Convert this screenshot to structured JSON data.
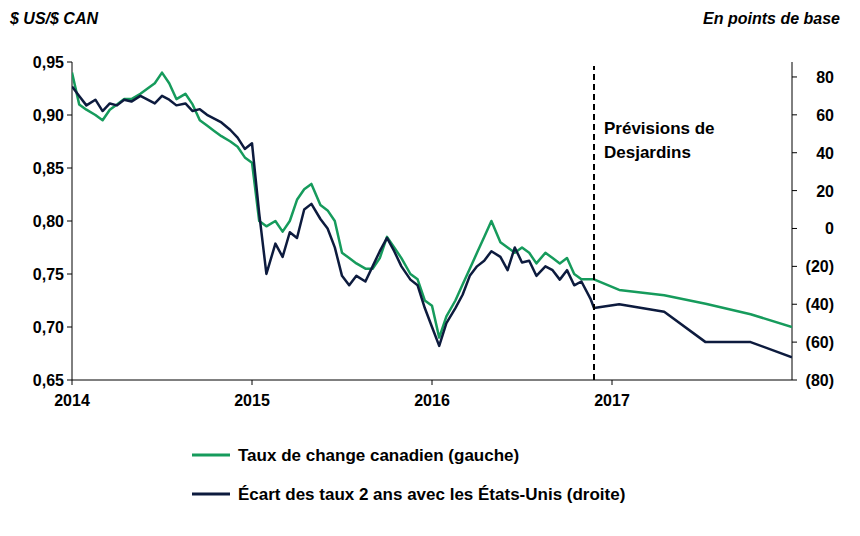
{
  "chart_data": {
    "type": "line",
    "y_label": "$ US/$ CAN",
    "y2_label": "En points de base",
    "x": [
      2014.0,
      2014.04,
      2014.08,
      2014.13,
      2014.17,
      2014.21,
      2014.25,
      2014.29,
      2014.33,
      2014.38,
      2014.42,
      2014.46,
      2014.5,
      2014.54,
      2014.58,
      2014.63,
      2014.67,
      2014.71,
      2014.75,
      2014.79,
      2014.83,
      2014.88,
      2014.92,
      2014.96,
      2015.0,
      2015.04,
      2015.08,
      2015.13,
      2015.17,
      2015.21,
      2015.25,
      2015.29,
      2015.33,
      2015.38,
      2015.42,
      2015.46,
      2015.5,
      2015.54,
      2015.58,
      2015.63,
      2015.67,
      2015.71,
      2015.75,
      2015.79,
      2015.83,
      2015.88,
      2015.92,
      2015.96,
      2016.0,
      2016.04,
      2016.08,
      2016.13,
      2016.17,
      2016.21,
      2016.25,
      2016.29,
      2016.33,
      2016.38,
      2016.42,
      2016.46,
      2016.5,
      2016.54,
      2016.58,
      2016.63,
      2016.67,
      2016.71,
      2016.75,
      2016.79,
      2016.83,
      2016.88,
      2016.9,
      2017.04,
      2017.29,
      2017.52,
      2017.77,
      2018.0
    ],
    "xlim": [
      2014,
      2018
    ],
    "xticks": [
      2014,
      2015,
      2016,
      2017
    ],
    "ylim": [
      0.65,
      0.95
    ],
    "yticks": [
      {
        "value": 0.65,
        "label": "0,65"
      },
      {
        "value": 0.7,
        "label": "0,70"
      },
      {
        "value": 0.75,
        "label": "0,75"
      },
      {
        "value": 0.8,
        "label": "0,80"
      },
      {
        "value": 0.85,
        "label": "0,85"
      },
      {
        "value": 0.9,
        "label": "0,90"
      },
      {
        "value": 0.95,
        "label": "0,95"
      }
    ],
    "y2lim": [
      -80,
      87.9
    ],
    "y2ticks": [
      {
        "value": -80,
        "label": "(80)"
      },
      {
        "value": -60,
        "label": "(60)"
      },
      {
        "value": -40,
        "label": "(40)"
      },
      {
        "value": -20,
        "label": "(20)"
      },
      0,
      20,
      40,
      60,
      80
    ],
    "grid": false,
    "legend": "bottom",
    "series": [
      {
        "name": "Taux de change canadien (gauche)",
        "color": "#169b5c",
        "axis": "y",
        "values": [
          0.94,
          0.91,
          0.905,
          0.9,
          0.895,
          0.905,
          0.91,
          0.915,
          0.915,
          0.92,
          0.925,
          0.93,
          0.94,
          0.93,
          0.915,
          0.92,
          0.91,
          0.895,
          0.89,
          0.885,
          0.88,
          0.875,
          0.87,
          0.86,
          0.855,
          0.8,
          0.795,
          0.8,
          0.79,
          0.8,
          0.82,
          0.83,
          0.835,
          0.815,
          0.81,
          0.8,
          0.77,
          0.765,
          0.76,
          0.755,
          0.755,
          0.765,
          0.785,
          0.775,
          0.765,
          0.75,
          0.745,
          0.725,
          0.72,
          0.69,
          0.71,
          0.725,
          0.74,
          0.755,
          0.77,
          0.785,
          0.8,
          0.78,
          0.775,
          0.77,
          0.775,
          0.77,
          0.76,
          0.77,
          0.765,
          0.76,
          0.765,
          0.75,
          0.745,
          0.745,
          0.745,
          0.735,
          0.73,
          0.722,
          0.712,
          0.7
        ]
      },
      {
        "name": "Écart des taux 2 ans avec les États-Unis (droite)",
        "color": "#0d1b3e",
        "axis": "y2",
        "values": [
          75,
          70,
          65,
          68,
          62,
          66,
          65,
          68,
          67,
          70,
          68,
          66,
          70,
          68,
          65,
          66,
          62,
          63,
          60,
          58,
          56,
          52,
          48,
          42,
          45,
          8,
          -24,
          -8,
          -15,
          -2,
          -5,
          10,
          13,
          5,
          0,
          -10,
          -25,
          -30,
          -25,
          -28,
          -20,
          -12,
          -5,
          -12,
          -20,
          -27,
          -30,
          -42,
          -52,
          -62,
          -50,
          -42,
          -35,
          -25,
          -20,
          -17,
          -12,
          -15,
          -22,
          -10,
          -18,
          -17,
          -25,
          -20,
          -22,
          -27,
          -22,
          -30,
          -28,
          -37,
          -42,
          -40,
          -44,
          -60,
          -60,
          -68
        ]
      }
    ],
    "annotations": [
      {
        "text": "Prévisions de\nDesjardins",
        "x": 2016.9,
        "line_style": "dashed"
      }
    ]
  }
}
